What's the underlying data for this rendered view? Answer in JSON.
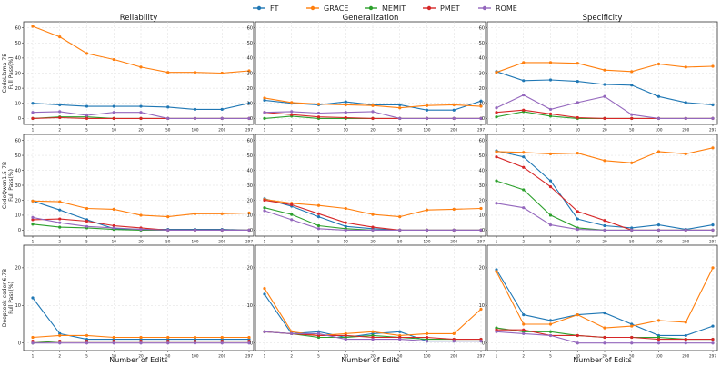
{
  "colors": {
    "FT": "#1f77b4",
    "GRACE": "#ff7f0e",
    "MEMIT": "#2ca02c",
    "PMET": "#d62728",
    "ROME": "#9467bd",
    "grid": "#dcdcdc",
    "axis": "#333333"
  },
  "legend": {
    "position": "top-center",
    "entries": [
      "FT",
      "GRACE",
      "MEMIT",
      "PMET",
      "ROME"
    ]
  },
  "columns": [
    "Reliability",
    "Generalization",
    "Specificity"
  ],
  "rows": [
    {
      "label_line1": "CodeLlama-7B",
      "label_line2": "Full Pass(%)"
    },
    {
      "label_line1": "CodeQwen1.5-7B",
      "label_line2": "Full Pass(%)"
    },
    {
      "label_line1": "Deepseek-coder-6.7B",
      "label_line2": "Full Pass(%)"
    }
  ],
  "xlabel": "Number of Edits",
  "chart_data": {
    "type": "line",
    "x_categories": [
      "1",
      "2",
      "5",
      "10",
      "20",
      "50",
      "100",
      "200",
      "297"
    ],
    "y_ticks": [
      [
        "0",
        "10",
        "20",
        "30",
        "40",
        "50",
        "60"
      ],
      [
        "0",
        "10",
        "20",
        "30",
        "40",
        "50",
        "60"
      ],
      [
        "0",
        "10",
        "20"
      ]
    ],
    "y_ranges": [
      [
        -4,
        64
      ],
      [
        -4,
        64
      ],
      [
        -2,
        26
      ]
    ],
    "grid": true,
    "panels": [
      [
        {
          "title": "Reliability",
          "series": [
            {
              "name": "FT",
              "values": [
                10,
                9,
                8,
                8,
                8,
                7.5,
                6,
                6,
                10
              ]
            },
            {
              "name": "GRACE",
              "values": [
                61,
                54,
                43,
                39,
                34,
                30.5,
                30.5,
                30,
                31.5
              ]
            },
            {
              "name": "MEMIT",
              "values": [
                0,
                1,
                1,
                0,
                0,
                0,
                0,
                0,
                0
              ]
            },
            {
              "name": "PMET",
              "values": [
                0,
                0.5,
                0,
                0,
                0,
                0,
                0,
                0,
                0
              ]
            },
            {
              "name": "ROME",
              "values": [
                4,
                4.5,
                2,
                4,
                4,
                0,
                0,
                0,
                0
              ]
            }
          ]
        },
        {
          "title": "Generalization",
          "series": [
            {
              "name": "FT",
              "values": [
                12,
                10,
                9,
                11,
                9,
                9,
                5.5,
                5.5,
                11.5
              ]
            },
            {
              "name": "GRACE",
              "values": [
                13.5,
                10.5,
                9.5,
                9,
                8.5,
                7,
                8.5,
                9,
                8
              ]
            },
            {
              "name": "MEMIT",
              "values": [
                0,
                1.5,
                0,
                0,
                0,
                0,
                0,
                0,
                0
              ]
            },
            {
              "name": "PMET",
              "values": [
                4,
                2.5,
                1,
                0.5,
                0,
                0,
                0,
                0,
                0
              ]
            },
            {
              "name": "ROME",
              "values": [
                4,
                4.5,
                3.5,
                4,
                4.5,
                0,
                0,
                0,
                0
              ]
            }
          ]
        },
        {
          "title": "Specificity",
          "series": [
            {
              "name": "FT",
              "values": [
                31,
                25,
                25.5,
                24.5,
                22.5,
                22,
                14.5,
                10.5,
                9
              ]
            },
            {
              "name": "GRACE",
              "values": [
                30.5,
                37,
                37,
                36.5,
                32,
                31,
                36,
                34,
                34.5
              ]
            },
            {
              "name": "MEMIT",
              "values": [
                1,
                4.5,
                1.5,
                0,
                0,
                0,
                0,
                0,
                0
              ]
            },
            {
              "name": "PMET",
              "values": [
                4,
                5.5,
                3,
                0.5,
                0,
                0,
                0,
                0,
                0
              ]
            },
            {
              "name": "ROME",
              "values": [
                7,
                15.5,
                6,
                10.5,
                14.5,
                2.5,
                0,
                0,
                0
              ]
            }
          ]
        }
      ],
      [
        {
          "title": "",
          "series": [
            {
              "name": "FT",
              "values": [
                19.5,
                13.5,
                7,
                1,
                0.5,
                0.5,
                0.5,
                0.5,
                0
              ]
            },
            {
              "name": "GRACE",
              "values": [
                19.5,
                19,
                14.5,
                14,
                10,
                9,
                11,
                11,
                11.5
              ]
            },
            {
              "name": "MEMIT",
              "values": [
                4,
                2,
                1.5,
                0.5,
                0,
                0,
                0,
                0,
                0
              ]
            },
            {
              "name": "PMET",
              "values": [
                7,
                7.5,
                6,
                3,
                1.5,
                0,
                0,
                0,
                0
              ]
            },
            {
              "name": "ROME",
              "values": [
                8.5,
                5,
                2.5,
                1.5,
                0.5,
                0,
                0,
                0,
                0
              ]
            }
          ]
        },
        {
          "title": "",
          "series": [
            {
              "name": "FT",
              "values": [
                21,
                16,
                9,
                2.5,
                1,
                0,
                0,
                0,
                0
              ]
            },
            {
              "name": "GRACE",
              "values": [
                20.5,
                18,
                16.5,
                14.5,
                10.5,
                9,
                13.5,
                14,
                14.5
              ]
            },
            {
              "name": "MEMIT",
              "values": [
                15,
                10.5,
                3,
                1,
                0,
                0,
                0,
                0,
                0
              ]
            },
            {
              "name": "PMET",
              "values": [
                20,
                17,
                11,
                5,
                2,
                0,
                0,
                0,
                0
              ]
            },
            {
              "name": "ROME",
              "values": [
                13,
                7,
                1,
                0,
                0,
                0,
                0,
                0,
                0
              ]
            }
          ]
        },
        {
          "title": "",
          "series": [
            {
              "name": "FT",
              "values": [
                53,
                49,
                33,
                7.5,
                3,
                1.5,
                3.5,
                0.5,
                3.5
              ]
            },
            {
              "name": "GRACE",
              "values": [
                52.5,
                52,
                51,
                51.5,
                46.5,
                45,
                52.5,
                51,
                55
              ]
            },
            {
              "name": "MEMIT",
              "values": [
                33,
                27,
                10,
                1.5,
                0,
                0,
                0,
                0,
                0
              ]
            },
            {
              "name": "PMET",
              "values": [
                49,
                42,
                29,
                12.5,
                6.5,
                0,
                0,
                0,
                0
              ]
            },
            {
              "name": "ROME",
              "values": [
                18,
                15,
                3.5,
                0.5,
                0,
                0,
                0,
                0,
                0
              ]
            }
          ]
        }
      ],
      [
        {
          "title": "",
          "series": [
            {
              "name": "FT",
              "values": [
                12,
                2.5,
                1,
                1,
                1,
                1,
                1,
                1,
                1
              ]
            },
            {
              "name": "GRACE",
              "values": [
                1.5,
                2,
                2,
                1.5,
                1.5,
                1.5,
                1.5,
                1.5,
                1.5
              ]
            },
            {
              "name": "MEMIT",
              "values": [
                0,
                0.5,
                0.5,
                0.5,
                0.5,
                0.5,
                0.5,
                0.5,
                0.5
              ]
            },
            {
              "name": "PMET",
              "values": [
                0.5,
                0.5,
                0.5,
                0.5,
                0.5,
                0.5,
                0.5,
                0.5,
                0.5
              ]
            },
            {
              "name": "ROME",
              "values": [
                0,
                0,
                0,
                0,
                0,
                0,
                0,
                0,
                0
              ]
            }
          ]
        },
        {
          "title": "",
          "series": [
            {
              "name": "FT",
              "values": [
                13,
                2.5,
                3,
                1.5,
                2.5,
                3,
                0.5,
                0.5,
                0.5
              ]
            },
            {
              "name": "GRACE",
              "values": [
                14.5,
                3,
                2,
                2.5,
                3,
                2,
                2.5,
                2.5,
                9
              ]
            },
            {
              "name": "MEMIT",
              "values": [
                3,
                2.5,
                1.5,
                1.5,
                2,
                1.5,
                1,
                1,
                1
              ]
            },
            {
              "name": "PMET",
              "values": [
                3,
                2.5,
                2,
                2,
                1.5,
                1.5,
                1.5,
                1,
                1
              ]
            },
            {
              "name": "ROME",
              "values": [
                3,
                2.5,
                2.5,
                1,
                1,
                1,
                0.5,
                0.5,
                0.5
              ]
            }
          ]
        },
        {
          "title": "",
          "series": [
            {
              "name": "FT",
              "values": [
                19.5,
                7.5,
                6,
                7.5,
                8,
                5,
                2,
                2,
                4.5
              ]
            },
            {
              "name": "GRACE",
              "values": [
                19,
                5,
                5,
                7.5,
                4,
                4.5,
                6,
                5.5,
                20
              ]
            },
            {
              "name": "MEMIT",
              "values": [
                4,
                3,
                3,
                2,
                1.5,
                1.5,
                1.5,
                1,
                1
              ]
            },
            {
              "name": "PMET",
              "values": [
                3.5,
                3.5,
                2,
                2,
                1.5,
                1.5,
                1,
                1,
                1
              ]
            },
            {
              "name": "ROME",
              "values": [
                3,
                2.5,
                2,
                0,
                0,
                0,
                0,
                0,
                0
              ]
            }
          ]
        }
      ]
    ]
  }
}
